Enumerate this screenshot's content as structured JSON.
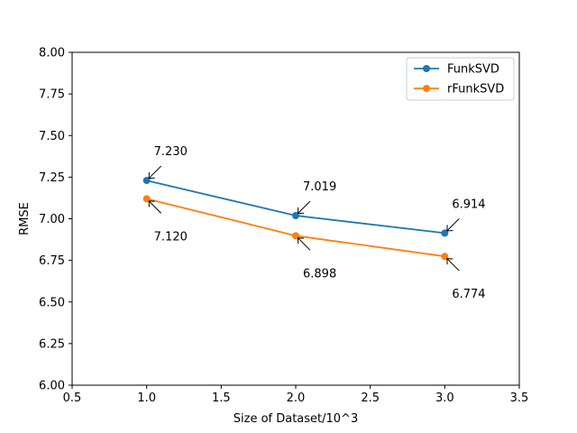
{
  "chart_data": {
    "type": "line",
    "xlabel": "Size of Dataset/10^3",
    "ylabel": "RMSE",
    "xlim": [
      0.5,
      3.5
    ],
    "ylim": [
      6.0,
      8.0
    ],
    "x_ticks": [
      "0.5",
      "1.0",
      "1.5",
      "2.0",
      "2.5",
      "3.0",
      "3.5"
    ],
    "y_ticks": [
      "6.00",
      "6.25",
      "6.50",
      "6.75",
      "7.00",
      "7.25",
      "7.50",
      "7.75",
      "8.00"
    ],
    "x": [
      1.0,
      2.0,
      3.0
    ],
    "series": [
      {
        "name": "FunkSVD",
        "color": "#1f77b4",
        "values": [
          7.23,
          7.019,
          6.914
        ],
        "labels": [
          "7.230",
          "7.019",
          "6.914"
        ],
        "label_position": "above"
      },
      {
        "name": "rFunkSVD",
        "color": "#ff7f0e",
        "values": [
          7.12,
          6.898,
          6.774
        ],
        "labels": [
          "7.120",
          "6.898",
          "6.774"
        ],
        "label_position": "below"
      }
    ],
    "grid": false,
    "legend_position": "top-right"
  }
}
